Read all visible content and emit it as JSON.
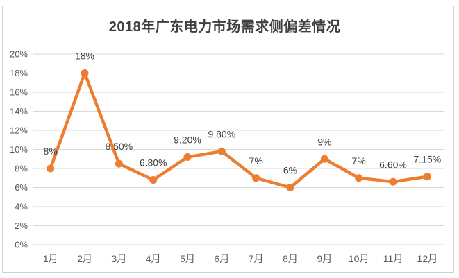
{
  "chart_data": {
    "type": "line",
    "title": "2018年广东电力市场需求侧偏差情况",
    "categories": [
      "1月",
      "2月",
      "3月",
      "4月",
      "5月",
      "6月",
      "7月",
      "8月",
      "9月",
      "10月",
      "11月",
      "12月"
    ],
    "values": [
      8,
      18,
      8.5,
      6.8,
      9.2,
      9.8,
      7,
      6,
      9,
      7,
      6.6,
      7.15
    ],
    "point_labels": [
      "8%",
      "18%",
      "8.50%",
      "6.80%",
      "9.20%",
      "9.80%",
      "7%",
      "6%",
      "9%",
      "7%",
      "6.60%",
      "7.15%"
    ],
    "xlabel": "",
    "ylabel": "",
    "ylim": [
      0,
      20
    ],
    "y_tick_step": 2,
    "y_tick_labels": [
      "0%",
      "2%",
      "4%",
      "6%",
      "8%",
      "10%",
      "12%",
      "14%",
      "16%",
      "18%",
      "20%"
    ],
    "grid": true,
    "legend": "none",
    "line_color": "#ED7D31",
    "marker_color": "#ED7D31",
    "grid_color": "#D9D9D9",
    "axis_text_color": "#595959",
    "label_color": "#404040",
    "frame_color": "#D2D2D2"
  }
}
